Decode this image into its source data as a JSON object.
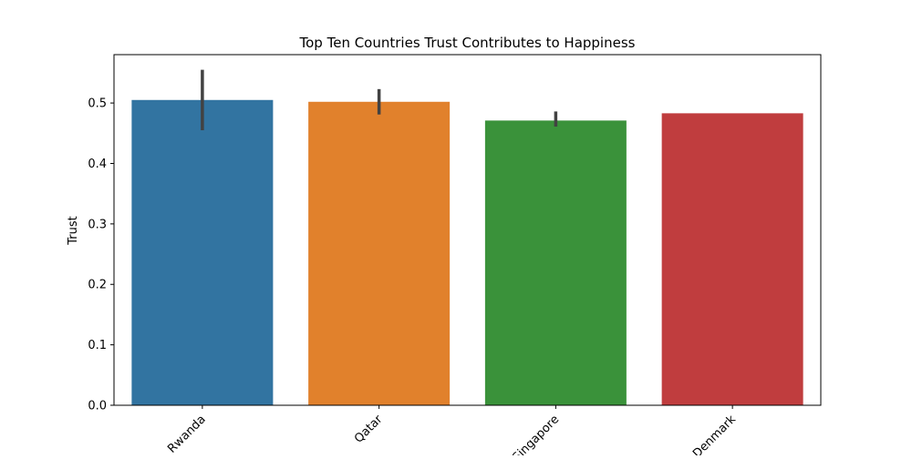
{
  "chart_data": {
    "type": "bar",
    "title": "Top Ten Countries Trust Contributes to Happiness",
    "xlabel": "",
    "ylabel": "Trust",
    "categories": [
      "Rwanda",
      "Qatar",
      "Singapore",
      "Denmark"
    ],
    "values": [
      0.505,
      0.502,
      0.471,
      0.483
    ],
    "error_low": [
      0.455,
      0.481,
      0.461,
      0.483
    ],
    "error_high": [
      0.555,
      0.523,
      0.486,
      0.483
    ],
    "colors": [
      "#3274a1",
      "#e1812c",
      "#3a923a",
      "#c03d3e"
    ],
    "ylim": [
      0,
      0.58
    ],
    "yticks": [
      0.0,
      0.1,
      0.2,
      0.3,
      0.4,
      0.5
    ],
    "ytick_labels": [
      "0.0",
      "0.1",
      "0.2",
      "0.3",
      "0.4",
      "0.5"
    ],
    "grid": false,
    "legend": "none"
  }
}
